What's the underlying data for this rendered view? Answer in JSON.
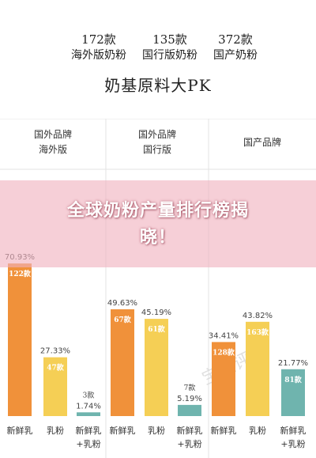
{
  "header": {
    "columns": [
      {
        "count": "172款",
        "name": "海外版奶粉"
      },
      {
        "count": "135款",
        "name": "国行版奶粉"
      },
      {
        "count": "372款",
        "name": "国产奶粉"
      }
    ],
    "title": "奶基原料大PK"
  },
  "banner": {
    "line1": "全球奶粉产量排行榜揭",
    "line2": "晓！"
  },
  "colors": {
    "orange": "#f0913a",
    "yellow": "#f5cf55",
    "teal": "#6fb4ae",
    "divider": "#e3e3e3"
  },
  "chart_data": {
    "type": "bar",
    "groups": [
      {
        "label_lines": [
          "国外品牌",
          "海外版"
        ],
        "bars": [
          {
            "category": "新鲜乳",
            "percent_label": "70.93%",
            "count_label": "122款",
            "value": 70.93,
            "color": "orange"
          },
          {
            "category": "乳粉",
            "percent_label": "27.33%",
            "count_label": "47款",
            "value": 27.33,
            "color": "yellow"
          },
          {
            "category_lines": [
              "新鲜乳",
              "+乳粉"
            ],
            "percent_label": "1.74%",
            "count_label": "3款",
            "value": 1.74,
            "color": "teal"
          }
        ]
      },
      {
        "label_lines": [
          "国外品牌",
          "国行版"
        ],
        "bars": [
          {
            "category": "新鲜乳",
            "percent_label": "49.63%",
            "count_label": "67款",
            "value": 49.63,
            "color": "orange"
          },
          {
            "category": "乳粉",
            "percent_label": "45.19%",
            "count_label": "61款",
            "value": 45.19,
            "color": "yellow"
          },
          {
            "category_lines": [
              "新鲜乳",
              "+乳粉"
            ],
            "percent_label": "5.19%",
            "count_label": "7款",
            "value": 5.19,
            "color": "teal"
          }
        ]
      },
      {
        "label_lines": [
          "国产品牌"
        ],
        "bars": [
          {
            "category": "新鲜乳",
            "percent_label": "34.41%",
            "count_label": "128款",
            "value": 34.41,
            "color": "orange"
          },
          {
            "category": "乳粉",
            "percent_label": "43.82%",
            "count_label": "163款",
            "value": 43.82,
            "color": "yellow"
          },
          {
            "category_lines": [
              "新鲜乳",
              "+乳粉"
            ],
            "percent_label": "21.77%",
            "count_label": "81款",
            "value": 21.77,
            "color": "teal"
          }
        ]
      }
    ],
    "ylim": [
      0,
      100
    ],
    "watermark": "宝宝评测"
  }
}
